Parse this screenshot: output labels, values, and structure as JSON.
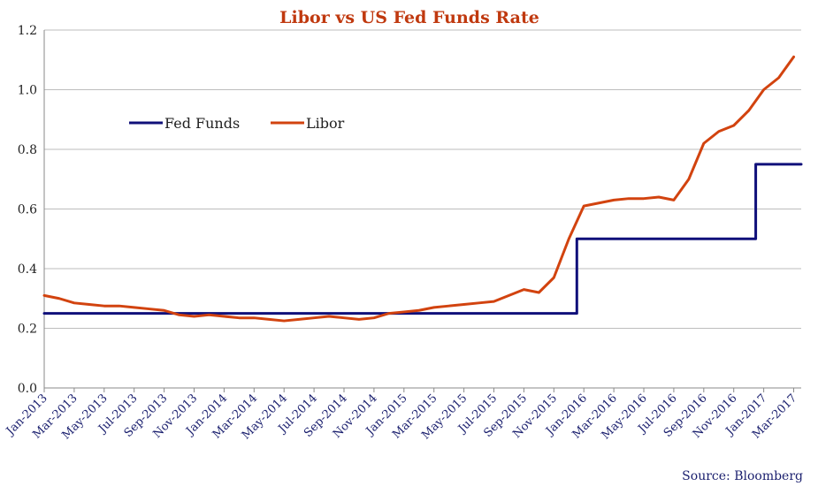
{
  "chart_data": {
    "type": "line",
    "title": "Libor vs US Fed Funds Rate",
    "source": "Source: Bloomberg",
    "xlabel": "",
    "ylabel": "",
    "ylim": [
      0,
      1.2
    ],
    "yticks": [
      "0.0",
      "0.2",
      "0.4",
      "0.6",
      "0.8",
      "1.0",
      "1.2"
    ],
    "xlim": [
      "2013-01",
      "2017-03"
    ],
    "xticks": [
      "Jan-2013",
      "Mar-2013",
      "May-2013",
      "Jul-2013",
      "Sep-2013",
      "Nov-2013",
      "Jan-2014",
      "Mar-2014",
      "May-2014",
      "Jul-2014",
      "Sep-2014",
      "Nov-2014",
      "Jan-2015",
      "Mar-2015",
      "May-2015",
      "Jul-2015",
      "Sep-2015",
      "Nov-2015",
      "Jan-2016",
      "Mar-2016",
      "May-2016",
      "Jul-2016",
      "Sep-2016",
      "Nov-2016",
      "Jan-2017",
      "Mar-2017"
    ],
    "grid": "horizontal",
    "legend_position": "top-left",
    "series": [
      {
        "name": "Fed Funds",
        "color": "#10107a",
        "style": "step",
        "x": [
          "2013-01",
          "2015-12-17",
          "2016-12-15",
          "2017-03-15"
        ],
        "values": [
          0.25,
          0.5,
          0.75,
          0.75
        ]
      },
      {
        "name": "Libor",
        "color": "#d2430f",
        "style": "line",
        "x": [
          "2013-01",
          "2013-02",
          "2013-03",
          "2013-04",
          "2013-05",
          "2013-06",
          "2013-07",
          "2013-08",
          "2013-09",
          "2013-10",
          "2013-11",
          "2013-12",
          "2014-01",
          "2014-02",
          "2014-03",
          "2014-04",
          "2014-05",
          "2014-06",
          "2014-07",
          "2014-08",
          "2014-09",
          "2014-10",
          "2014-11",
          "2014-12",
          "2015-01",
          "2015-02",
          "2015-03",
          "2015-04",
          "2015-05",
          "2015-06",
          "2015-07",
          "2015-08",
          "2015-09",
          "2015-10",
          "2015-11",
          "2015-12",
          "2016-01",
          "2016-02",
          "2016-03",
          "2016-04",
          "2016-05",
          "2016-06",
          "2016-07",
          "2016-08",
          "2016-09",
          "2016-10",
          "2016-11",
          "2016-12",
          "2017-01",
          "2017-02",
          "2017-03"
        ],
        "values": [
          0.31,
          0.3,
          0.285,
          0.28,
          0.275,
          0.275,
          0.27,
          0.265,
          0.26,
          0.245,
          0.24,
          0.245,
          0.24,
          0.235,
          0.235,
          0.23,
          0.225,
          0.23,
          0.235,
          0.24,
          0.235,
          0.23,
          0.235,
          0.25,
          0.255,
          0.26,
          0.27,
          0.275,
          0.28,
          0.285,
          0.29,
          0.31,
          0.33,
          0.32,
          0.37,
          0.5,
          0.61,
          0.62,
          0.63,
          0.635,
          0.635,
          0.64,
          0.63,
          0.7,
          0.82,
          0.86,
          0.88,
          0.93,
          1.0,
          1.04,
          1.11
        ]
      }
    ]
  }
}
